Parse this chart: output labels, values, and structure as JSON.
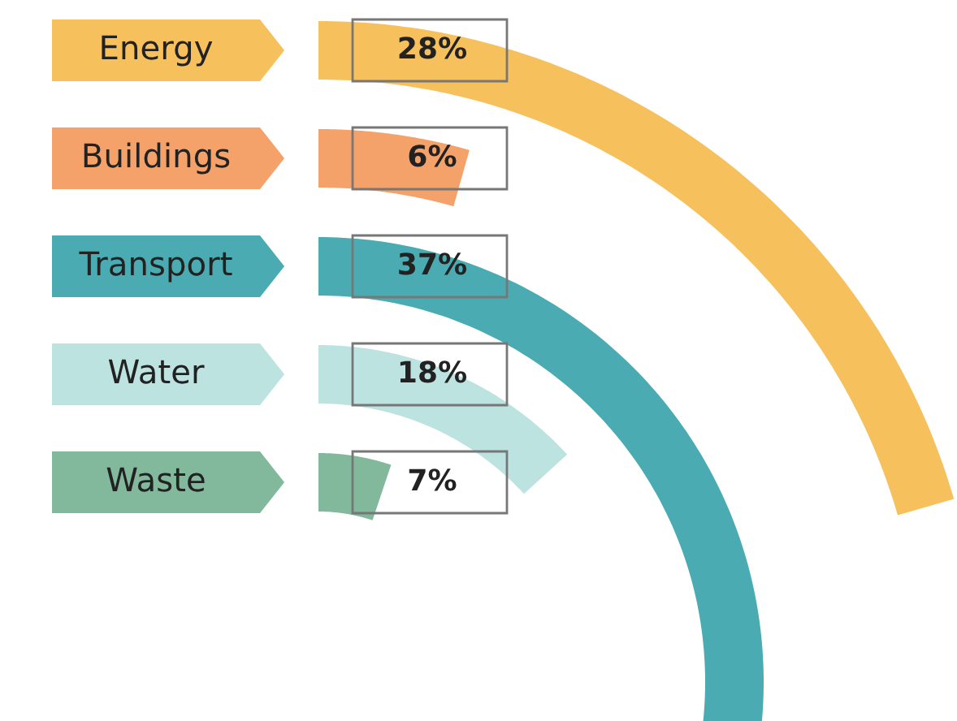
{
  "chart_data": {
    "type": "other",
    "categories": [
      "Energy",
      "Buildings",
      "Transport",
      "Water",
      "Waste"
    ],
    "values": [
      28,
      6,
      37,
      18,
      7
    ],
    "value_labels": [
      "28%",
      "6%",
      "37%",
      "18%",
      "7%"
    ],
    "colors": [
      "#f6c05c",
      "#f4a26a",
      "#4aacb2",
      "#bde3e1",
      "#82b89c"
    ]
  }
}
